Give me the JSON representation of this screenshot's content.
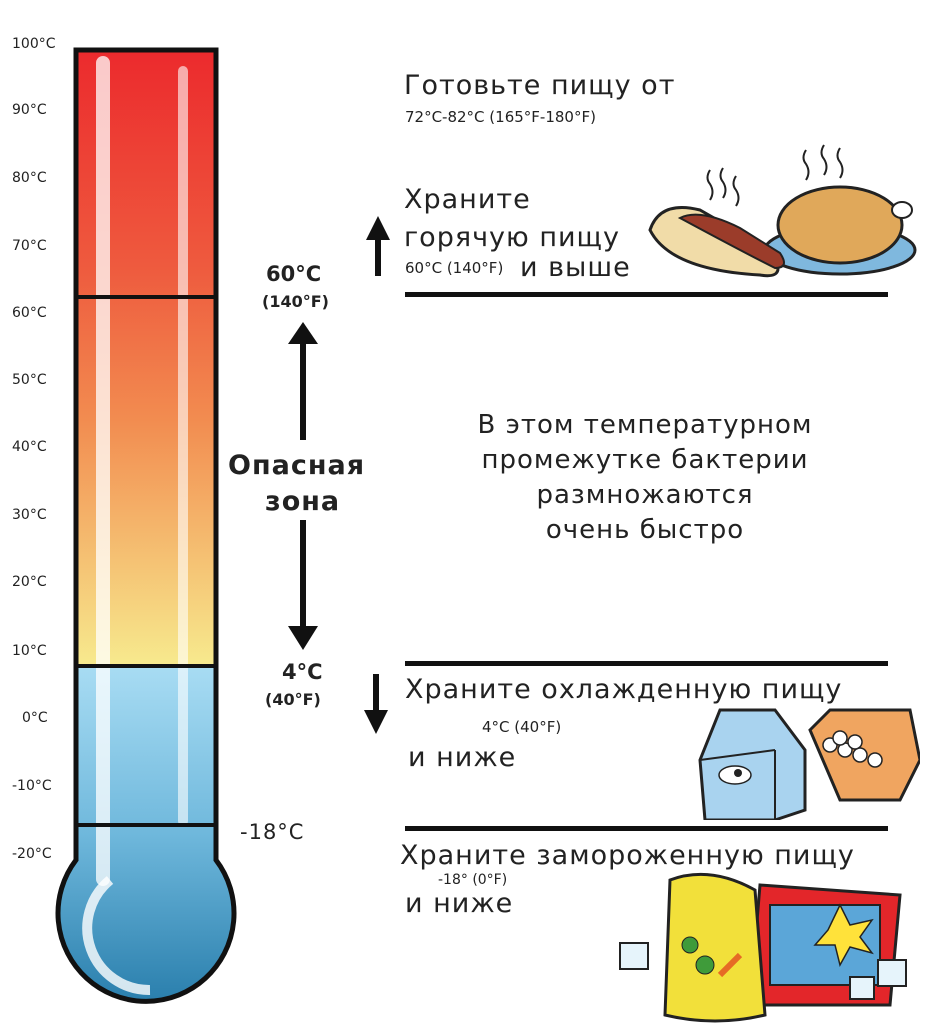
{
  "scale": {
    "ticks": [
      "100°C",
      "90°C",
      "80°C",
      "70°C",
      "60°C",
      "50°C",
      "40°C",
      "30°C",
      "20°C",
      "10°C",
      "0°C",
      "-10°C",
      "-20°C"
    ]
  },
  "markers": {
    "hot_c": "60°C",
    "hot_f": "(140°F)",
    "cold_c": "4°C",
    "cold_f": "(40°F)",
    "frozen_c": "-18°C"
  },
  "danger_zone": {
    "line1": "Опасная",
    "line2": "зона"
  },
  "cook": {
    "title": "Готовьте пищу от",
    "range": "72°C-82°C (165°F-180°F)"
  },
  "hot": {
    "line1": "Храните",
    "line2": "горячую пищу",
    "temp": "60°C (140°F)",
    "suffix": "и выше"
  },
  "danger_text": {
    "lines": [
      "В этом температурном",
      "промежутке бактерии",
      "размножаются",
      "очень быстро"
    ]
  },
  "cold": {
    "title": "Храните охлажденную пищу",
    "temp": "4°C (40°F)",
    "suffix": "и ниже"
  },
  "frozen": {
    "title": "Храните замороженную пищу",
    "temp": "-18° (0°F)",
    "suffix": "и ниже"
  },
  "colors": {
    "hot_top": "#ec2a2d",
    "warm": "#f08c4a",
    "yellow": "#f6e78a",
    "cold_light": "#a9daf1",
    "cold_dark": "#2e86b4"
  }
}
